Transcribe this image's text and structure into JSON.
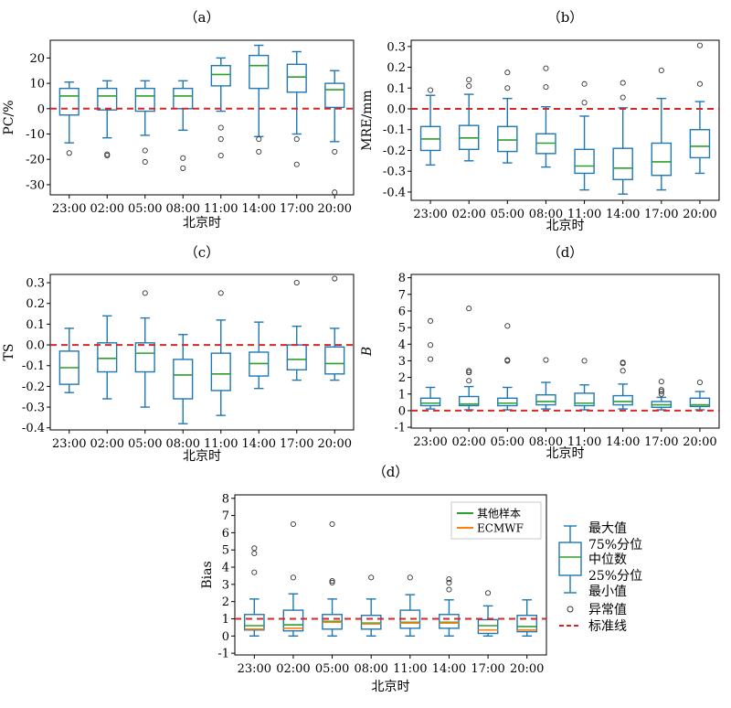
{
  "chart_data": [
    {
      "panel_label": "（a）",
      "type": "box",
      "xlabel": "北京时",
      "ylabel": "PC/%",
      "ylim": [
        -34,
        27
      ],
      "yticks": [
        -30,
        -20,
        -10,
        0,
        10,
        20
      ],
      "reference_line": 0,
      "categories": [
        "23:00",
        "02:00",
        "05:00",
        "08:00",
        "11:00",
        "14:00",
        "17:00",
        "20:00"
      ],
      "boxes": [
        {
          "min": -13.5,
          "q1": -2.5,
          "median": 5,
          "q3": 8,
          "max": 10.5,
          "outliers": [
            -17.5
          ]
        },
        {
          "min": -11.5,
          "q1": -0.5,
          "median": 5,
          "q3": 8,
          "max": 11,
          "outliers": [
            -18,
            -18.5
          ]
        },
        {
          "min": -10.5,
          "q1": -1,
          "median": 5,
          "q3": 8,
          "max": 11,
          "outliers": [
            -16.5,
            -21
          ]
        },
        {
          "min": -8.5,
          "q1": 0,
          "median": 5,
          "q3": 8,
          "max": 11,
          "outliers": [
            -19.5,
            -23.5
          ]
        },
        {
          "min": -1,
          "q1": 9,
          "median": 13.5,
          "q3": 17,
          "max": 20,
          "outliers": [
            -7.5,
            -12,
            -18.5
          ]
        },
        {
          "min": -11,
          "q1": 8,
          "median": 17,
          "q3": 21,
          "max": 25,
          "outliers": [
            -12,
            -17
          ]
        },
        {
          "min": -10,
          "q1": 6.5,
          "median": 12.5,
          "q3": 17.5,
          "max": 22.5,
          "outliers": [
            -12,
            -22
          ]
        },
        {
          "min": -13,
          "q1": 0.5,
          "median": 7.5,
          "q3": 10,
          "max": 15,
          "outliers": [
            -17,
            -33
          ]
        }
      ]
    },
    {
      "panel_label": "（b）",
      "type": "box",
      "xlabel": "北京时",
      "ylabel": "MRE/mm",
      "ylim": [
        -0.44,
        0.33
      ],
      "yticks": [
        -0.4,
        -0.3,
        -0.2,
        -0.1,
        0.0,
        0.1,
        0.2,
        0.3
      ],
      "reference_line": 0,
      "categories": [
        "23:00",
        "02:00",
        "05:00",
        "08:00",
        "11:00",
        "14:00",
        "17:00",
        "20:00"
      ],
      "boxes": [
        {
          "min": -0.27,
          "q1": -0.2,
          "median": -0.145,
          "q3": -0.085,
          "max": 0.065,
          "outliers": [
            0.09
          ]
        },
        {
          "min": -0.25,
          "q1": -0.195,
          "median": -0.14,
          "q3": -0.08,
          "max": 0.07,
          "outliers": [
            0.11,
            0.14
          ]
        },
        {
          "min": -0.26,
          "q1": -0.205,
          "median": -0.15,
          "q3": -0.085,
          "max": 0.05,
          "outliers": [
            0.1,
            0.175
          ]
        },
        {
          "min": -0.28,
          "q1": -0.215,
          "median": -0.165,
          "q3": -0.12,
          "max": 0.01,
          "outliers": [
            0.105,
            0.195
          ]
        },
        {
          "min": -0.39,
          "q1": -0.31,
          "median": -0.275,
          "q3": -0.195,
          "max": -0.035,
          "outliers": [
            0.03,
            0.12
          ]
        },
        {
          "min": -0.41,
          "q1": -0.34,
          "median": -0.285,
          "q3": -0.19,
          "max": 0.005,
          "outliers": [
            0.055,
            0.125
          ]
        },
        {
          "min": -0.39,
          "q1": -0.32,
          "median": -0.255,
          "q3": -0.165,
          "max": 0.05,
          "outliers": [
            0.185
          ]
        },
        {
          "min": -0.31,
          "q1": -0.235,
          "median": -0.18,
          "q3": -0.1,
          "max": 0.035,
          "outliers": [
            0.12,
            0.305
          ]
        }
      ]
    },
    {
      "panel_label": "（c）",
      "type": "box",
      "xlabel": "北京时",
      "ylabel": "TS",
      "ylim": [
        -0.41,
        0.34
      ],
      "yticks": [
        -0.4,
        -0.3,
        -0.2,
        -0.1,
        0.0,
        0.1,
        0.2,
        0.3
      ],
      "reference_line": 0,
      "categories": [
        "23:00",
        "02:00",
        "05:00",
        "08:00",
        "11:00",
        "14:00",
        "17:00",
        "20:00"
      ],
      "boxes": [
        {
          "min": -0.23,
          "q1": -0.19,
          "median": -0.11,
          "q3": -0.03,
          "max": 0.08,
          "outliers": []
        },
        {
          "min": -0.26,
          "q1": -0.13,
          "median": -0.065,
          "q3": 0.01,
          "max": 0.14,
          "outliers": []
        },
        {
          "min": -0.3,
          "q1": -0.13,
          "median": -0.04,
          "q3": 0.01,
          "max": 0.13,
          "outliers": [
            0.25
          ]
        },
        {
          "min": -0.38,
          "q1": -0.26,
          "median": -0.145,
          "q3": -0.07,
          "max": 0.05,
          "outliers": []
        },
        {
          "min": -0.34,
          "q1": -0.22,
          "median": -0.14,
          "q3": -0.04,
          "max": 0.12,
          "outliers": [
            0.25
          ]
        },
        {
          "min": -0.21,
          "q1": -0.15,
          "median": -0.09,
          "q3": -0.035,
          "max": 0.11,
          "outliers": []
        },
        {
          "min": -0.17,
          "q1": -0.12,
          "median": -0.07,
          "q3": 0.0,
          "max": 0.09,
          "outliers": [
            0.3
          ]
        },
        {
          "min": -0.17,
          "q1": -0.14,
          "median": -0.09,
          "q3": -0.01,
          "max": 0.08,
          "outliers": [
            0.32
          ]
        }
      ]
    },
    {
      "panel_label": "（d）",
      "type": "box",
      "xlabel": "北京时",
      "ylabel": "B",
      "ylim": [
        -1.05,
        8.2
      ],
      "yticks": [
        -1,
        0,
        1,
        2,
        3,
        4,
        5,
        6,
        7,
        8
      ],
      "reference_line": 0,
      "categories": [
        "23:00",
        "02:00",
        "05:00",
        "08:00",
        "11:00",
        "14:00",
        "17:00",
        "20:00"
      ],
      "boxes": [
        {
          "min": 0.1,
          "q1": 0.3,
          "median": 0.45,
          "q3": 0.75,
          "max": 1.4,
          "outliers": [
            3.1,
            3.95,
            5.4
          ]
        },
        {
          "min": 0.05,
          "q1": 0.3,
          "median": 0.4,
          "q3": 0.85,
          "max": 1.45,
          "outliers": [
            1.8,
            2.3,
            2.4,
            6.15
          ]
        },
        {
          "min": 0.05,
          "q1": 0.3,
          "median": 0.45,
          "q3": 0.75,
          "max": 1.4,
          "outliers": [
            3.0,
            3.05,
            5.1
          ]
        },
        {
          "min": 0.1,
          "q1": 0.35,
          "median": 0.55,
          "q3": 0.95,
          "max": 1.7,
          "outliers": [
            3.05
          ]
        },
        {
          "min": 0.05,
          "q1": 0.3,
          "median": 0.45,
          "q3": 1.05,
          "max": 1.55,
          "outliers": [
            3.0
          ]
        },
        {
          "min": 0.1,
          "q1": 0.35,
          "median": 0.55,
          "q3": 0.9,
          "max": 1.6,
          "outliers": [
            2.4,
            2.85,
            2.9
          ]
        },
        {
          "min": 0.05,
          "q1": 0.2,
          "median": 0.35,
          "q3": 0.55,
          "max": 0.8,
          "outliers": [
            1.0,
            1.15,
            1.25,
            1.75
          ]
        },
        {
          "min": 0.05,
          "q1": 0.25,
          "median": 0.35,
          "q3": 0.75,
          "max": 1.15,
          "outliers": [
            1.7
          ]
        }
      ]
    },
    {
      "panel_label": "（d）",
      "type": "box",
      "xlabel": "北京时",
      "ylabel": "Bias",
      "ylim": [
        -1.1,
        8.2
      ],
      "yticks": [
        -1,
        0,
        1,
        2,
        3,
        4,
        5,
        6,
        7,
        8
      ],
      "reference_line": 1,
      "categories": [
        "23:00",
        "02:00",
        "05:00",
        "08:00",
        "11:00",
        "14:00",
        "17:00",
        "20:00"
      ],
      "series": [
        {
          "name": "其他样本",
          "color": "#2ca02c",
          "medians": [
            0.6,
            0.65,
            0.85,
            0.75,
            0.8,
            0.8,
            0.6,
            0.55
          ]
        },
        {
          "name": "ECMWF",
          "color": "#ff7f0e",
          "medians": [
            0.4,
            0.45,
            0.8,
            0.7,
            0.75,
            0.75,
            0.35,
            0.35
          ]
        }
      ],
      "boxes": [
        {
          "min": 0.0,
          "q1": 0.35,
          "median": 0.6,
          "q3": 1.25,
          "max": 2.15,
          "outliers": [
            3.7,
            4.8,
            5.1
          ]
        },
        {
          "min": 0.0,
          "q1": 0.3,
          "median": 0.65,
          "q3": 1.5,
          "max": 2.45,
          "outliers": [
            3.4,
            6.5
          ]
        },
        {
          "min": 0.0,
          "q1": 0.4,
          "median": 0.85,
          "q3": 1.25,
          "max": 2.15,
          "outliers": [
            3.1,
            3.2,
            6.5
          ]
        },
        {
          "min": 0.0,
          "q1": 0.4,
          "median": 0.75,
          "q3": 1.2,
          "max": 2.15,
          "outliers": [
            3.4
          ]
        },
        {
          "min": 0.0,
          "q1": 0.45,
          "median": 0.8,
          "q3": 1.5,
          "max": 2.4,
          "outliers": [
            3.4
          ]
        },
        {
          "min": 0.0,
          "q1": 0.45,
          "median": 0.8,
          "q3": 1.25,
          "max": 2.1,
          "outliers": [
            2.7,
            3.1,
            3.3
          ]
        },
        {
          "min": 0.0,
          "q1": 0.15,
          "median": 0.6,
          "q3": 0.95,
          "max": 1.75,
          "outliers": [
            2.5
          ]
        },
        {
          "min": 0.0,
          "q1": 0.25,
          "median": 0.55,
          "q3": 1.2,
          "max": 2.1,
          "outliers": []
        }
      ],
      "legend": {
        "entries": [
          "其他样本",
          "ECMWF"
        ],
        "box_key": [
          "最大值",
          "75%分位",
          "中位数",
          "25%分位",
          "最小值",
          "异常值",
          "标准线"
        ]
      }
    }
  ],
  "style": {
    "box_color": "#1f77b4",
    "median_color": "#2ca02c",
    "ecmwf_color": "#ff7f0e",
    "reference_color": "#d62728",
    "outlier_color": "#333333"
  }
}
